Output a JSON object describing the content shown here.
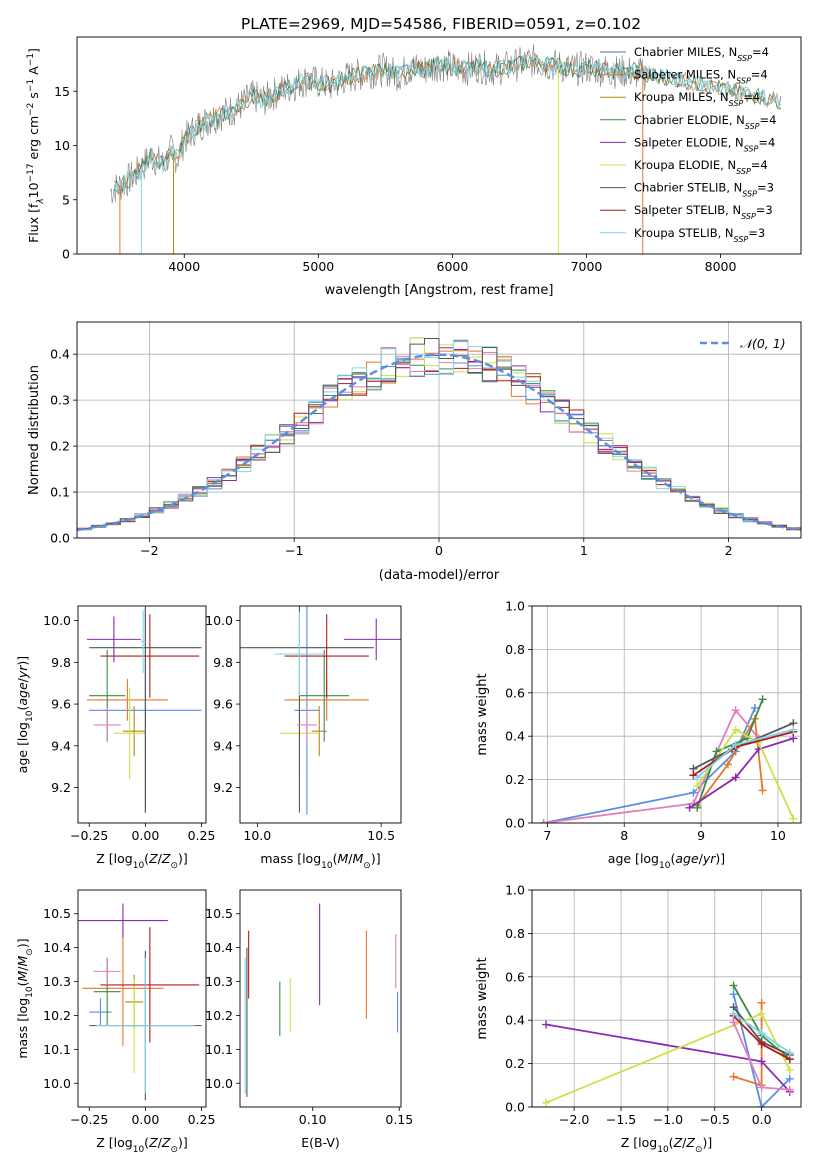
{
  "page_title": "PLATE=2969, MJD=54586, FIBERID=0591, z=0.102",
  "colors": {
    "chabrier_miles": "#4c6e9e",
    "salpeter_miles": "#e8762a",
    "kroupa_miles": "#b8860b",
    "chabrier_elodie": "#3d8a4a",
    "salpeter_elodie": "#8b29b0",
    "kroupa_elodie": "#cde04a",
    "chabrier_stelib": "#555555",
    "salpeter_stelib": "#b01b1b",
    "kroupa_stelib": "#7fd6e8",
    "blue": "#5b8ee0",
    "pink": "#e07fbf",
    "grid": "#b0b0b0"
  },
  "chart_data": [
    {
      "id": "spectrum",
      "type": "line",
      "title": "PLATE=2969, MJD=54586, FIBERID=0591, z=0.102",
      "xlabel": "wavelength [Angstrom, rest frame]",
      "ylabel": "Flux [f_λ 10^-17 erg cm^-2 s^-1 A^-1]",
      "ylabel_parts": {
        "a": "Flux [f",
        "b": "λ",
        "c": "10",
        "d": "−17",
        "e": " erg cm",
        "f": "−2",
        "g": " s",
        "h": "−1",
        "i": " A",
        "j": "−1",
        "k": "]"
      },
      "xlim": [
        3200,
        8600
      ],
      "ylim": [
        0,
        20
      ],
      "xticks": [
        4000,
        5000,
        6000,
        7000,
        8000
      ],
      "yticks": [
        0,
        5,
        10,
        15
      ],
      "grid": false,
      "legend_position": "top-right",
      "legend": [
        {
          "name": "Chabrier MILES, N",
          "sub": "SSP",
          "suffix": "=4",
          "color": "#4c6e9e"
        },
        {
          "name": "Salpeter MILES, N",
          "sub": "SSP",
          "suffix": "=4",
          "color": "#e8762a"
        },
        {
          "name": "Kroupa MILES, N",
          "sub": "SSP",
          "suffix": "=4",
          "color": "#b8860b"
        },
        {
          "name": "Chabrier ELODIE, N",
          "sub": "SSP",
          "suffix": "=4",
          "color": "#3d8a4a"
        },
        {
          "name": "Salpeter ELODIE, N",
          "sub": "SSP",
          "suffix": "=4",
          "color": "#8b29b0"
        },
        {
          "name": "Kroupa ELODIE, N",
          "sub": "SSP",
          "suffix": "=4",
          "color": "#cde04a"
        },
        {
          "name": "Chabrier STELIB, N",
          "sub": "SSP",
          "suffix": "=3",
          "color": "#555555"
        },
        {
          "name": "Salpeter STELIB, N",
          "sub": "SSP",
          "suffix": "=3",
          "color": "#b01b1b"
        },
        {
          "name": "Kroupa STELIB, N",
          "sub": "SSP",
          "suffix": "=3",
          "color": "#7fd6e8"
        }
      ],
      "series": [
        {
          "name": "data",
          "color": "#808080",
          "x": [
            3450,
            3500,
            3550,
            3600,
            3650,
            3700,
            3750,
            3800,
            3850,
            3900,
            3950,
            4000,
            4100,
            4200,
            4300,
            4400,
            4500,
            4600,
            4700,
            4800,
            4900,
            5000,
            5100,
            5200,
            5300,
            5400,
            5500,
            5600,
            5700,
            5800,
            5900,
            6000,
            6100,
            6200,
            6300,
            6400,
            6500,
            6600,
            6700,
            6800,
            6900,
            7000,
            7100,
            7200,
            7300,
            7400,
            7500,
            7600,
            7700,
            7800,
            7900,
            8000,
            8100,
            8200,
            8300,
            8400,
            8500,
            8600
          ],
          "y": [
            5.8,
            6.2,
            6.5,
            7.0,
            7.5,
            8.2,
            9.0,
            8.6,
            8.2,
            9.5,
            8.8,
            10.5,
            11.8,
            12.5,
            13.0,
            13.5,
            14.5,
            14.2,
            15.0,
            15.5,
            16.0,
            15.8,
            15.5,
            16.2,
            16.5,
            16.8,
            17.0,
            16.5,
            17.2,
            17.0,
            17.5,
            17.2,
            17.0,
            17.3,
            17.0,
            17.2,
            17.5,
            17.8,
            17.5,
            17.3,
            17.0,
            17.2,
            17.0,
            16.8,
            16.8,
            16.6,
            16.5,
            16.3,
            16.0,
            15.8,
            15.5,
            15.3,
            15.0,
            14.8,
            14.5,
            14.2,
            14.0,
            13.8
          ]
        }
      ]
    },
    {
      "id": "residuals",
      "type": "line",
      "xlabel": "(data-model)/error",
      "ylabel": "Normed distribution",
      "xlim": [
        -2.5,
        2.5
      ],
      "ylim": [
        0,
        0.47
      ],
      "xticks": [
        -2,
        -1,
        0,
        1,
        2
      ],
      "yticks": [
        0.0,
        0.1,
        0.2,
        0.3,
        0.4
      ],
      "grid": true,
      "legend_position": "top-right",
      "legend": [
        {
          "name": "𝒩(0, 1)",
          "color": "#5b8ee0",
          "dashed": true
        }
      ],
      "normal_curve": {
        "mu": 0,
        "sigma": 1
      }
    },
    {
      "id": "age_vs_Z",
      "type": "scatter",
      "xlabel": "Z [log10(Z/Z☉)]",
      "ylabel": "age  [log10(age/yr)]",
      "xlim": [
        -0.3,
        0.27
      ],
      "ylim": [
        9.03,
        10.07
      ],
      "xticks": [
        -0.25,
        0.0,
        0.25
      ],
      "yticks": [
        9.2,
        9.4,
        9.6,
        9.8,
        10.0
      ],
      "grid": false,
      "points": [
        {
          "x": 0.0,
          "y": 9.57,
          "xerr": 0.25,
          "yerr": 0.49,
          "color": "#5b8ee0"
        },
        {
          "x": -0.08,
          "y": 9.62,
          "xerr": 0.18,
          "yerr": 0.1,
          "color": "#e8762a"
        },
        {
          "x": -0.05,
          "y": 9.47,
          "xerr": 0.05,
          "yerr": 0.12,
          "color": "#b8860b"
        },
        {
          "x": -0.17,
          "y": 9.64,
          "xerr": 0.08,
          "yerr": 0.22,
          "color": "#3d8a4a"
        },
        {
          "x": -0.14,
          "y": 9.91,
          "xerr": 0.12,
          "yerr": 0.11,
          "color": "#8b29b0"
        },
        {
          "x": -0.07,
          "y": 9.46,
          "xerr": 0.07,
          "yerr": 0.22,
          "color": "#cde04a"
        },
        {
          "x": 0.0,
          "y": 9.87,
          "xerr": 0.25,
          "yerr": 0.79,
          "color": "#555555"
        },
        {
          "x": 0.02,
          "y": 9.83,
          "xerr": 0.22,
          "yerr": 0.2,
          "color": "#b01b1b"
        },
        {
          "x": -0.17,
          "y": 9.5,
          "xerr": 0.06,
          "yerr": 0.08,
          "color": "#e07fbf"
        },
        {
          "x": -0.01,
          "y": 9.9,
          "xerr": 0.01,
          "yerr": 0.15,
          "color": "#7fd6e8"
        }
      ]
    },
    {
      "id": "age_vs_mass",
      "type": "scatter",
      "xlabel": "mass [log10(M/M☉)]",
      "ylabel": "",
      "xlim": [
        9.93,
        10.58
      ],
      "ylim": [
        9.03,
        10.07
      ],
      "xticks": [
        10.0,
        10.5
      ],
      "yticks": [
        9.2,
        9.4,
        9.6,
        9.8,
        10.0
      ],
      "grid": false,
      "points": [
        {
          "x": 10.2,
          "y": 9.57,
          "xerr": 0.05,
          "yerr": 0.5,
          "color": "#5b8ee0"
        },
        {
          "x": 10.28,
          "y": 9.62,
          "xerr": 0.17,
          "yerr": 0.1,
          "color": "#e8762a"
        },
        {
          "x": 10.25,
          "y": 9.47,
          "xerr": 0.03,
          "yerr": 0.12,
          "color": "#b8860b"
        },
        {
          "x": 10.27,
          "y": 9.64,
          "xerr": 0.1,
          "yerr": 0.22,
          "color": "#3d8a4a"
        },
        {
          "x": 10.48,
          "y": 9.91,
          "xerr": 0.13,
          "yerr": 0.1,
          "color": "#8b29b0"
        },
        {
          "x": 10.17,
          "y": 9.46,
          "xerr": 0.08,
          "yerr": 0.22,
          "color": "#cde04a"
        },
        {
          "x": 10.17,
          "y": 9.87,
          "xerr": 0.3,
          "yerr": 0.79,
          "color": "#555555"
        },
        {
          "x": 10.28,
          "y": 9.83,
          "xerr": 0.17,
          "yerr": 0.2,
          "color": "#b01b1b"
        },
        {
          "x": 10.2,
          "y": 9.5,
          "xerr": 0.04,
          "yerr": 0.08,
          "color": "#e07fbf"
        },
        {
          "x": 10.17,
          "y": 9.84,
          "xerr": 0.1,
          "yerr": 0.2,
          "color": "#7fd6e8"
        }
      ]
    },
    {
      "id": "weight_vs_age",
      "type": "line",
      "xlabel": "age  [log10(age/yr)]",
      "ylabel": "mass weight",
      "xlim": [
        6.8,
        10.3
      ],
      "ylim": [
        0,
        1
      ],
      "xticks": [
        7,
        8,
        9,
        10
      ],
      "yticks": [
        0.0,
        0.2,
        0.4,
        0.6,
        0.8,
        1.0
      ],
      "grid": true,
      "series": [
        {
          "color": "#5b8ee0",
          "x": [
            6.95,
            8.9,
            9.45,
            9.7
          ],
          "y": [
            0.0,
            0.14,
            0.33,
            0.53
          ]
        },
        {
          "color": "#e07fbf",
          "x": [
            6.95,
            8.9,
            9.45,
            9.75
          ],
          "y": [
            0.0,
            0.09,
            0.52,
            0.39
          ]
        },
        {
          "color": "#e8762a",
          "x": [
            8.95,
            9.35,
            9.7,
            9.8
          ],
          "y": [
            0.08,
            0.27,
            0.48,
            0.15
          ]
        },
        {
          "color": "#3d8a4a",
          "x": [
            8.95,
            9.2,
            9.6,
            9.8
          ],
          "y": [
            0.07,
            0.33,
            0.39,
            0.57
          ]
        },
        {
          "color": "#8b29b0",
          "x": [
            8.85,
            9.45,
            9.75,
            10.2
          ],
          "y": [
            0.07,
            0.21,
            0.34,
            0.39
          ]
        },
        {
          "color": "#cde04a",
          "x": [
            8.95,
            9.45,
            9.75,
            10.2
          ],
          "y": [
            0.17,
            0.43,
            0.37,
            0.02
          ]
        },
        {
          "color": "#555555",
          "x": [
            8.9,
            9.4,
            10.2
          ],
          "y": [
            0.25,
            0.34,
            0.46
          ]
        },
        {
          "color": "#b01b1b",
          "x": [
            8.9,
            9.45,
            10.2
          ],
          "y": [
            0.22,
            0.35,
            0.42
          ]
        },
        {
          "color": "#7fd6e8",
          "x": [
            8.95,
            9.45,
            10.2
          ],
          "y": [
            0.21,
            0.36,
            0.43
          ]
        }
      ]
    },
    {
      "id": "mass_vs_Z",
      "type": "scatter",
      "xlabel": "Z [log10(Z/Z☉)]",
      "ylabel": "mass [log10(M/M☉)]",
      "xlim": [
        -0.3,
        0.27
      ],
      "ylim": [
        9.93,
        10.57
      ],
      "xticks": [
        -0.25,
        0.0,
        0.25
      ],
      "yticks": [
        10.0,
        10.1,
        10.2,
        10.3,
        10.4,
        10.5
      ],
      "grid": false,
      "points": [
        {
          "x": -0.2,
          "y": 10.21,
          "xerr": 0.05,
          "yerr": 0.04,
          "color": "#5b8ee0"
        },
        {
          "x": -0.1,
          "y": 10.28,
          "xerr": 0.18,
          "yerr": 0.17,
          "color": "#e8762a"
        },
        {
          "x": -0.05,
          "y": 10.24,
          "xerr": 0.04,
          "yerr": 0.08,
          "color": "#b8860b"
        },
        {
          "x": -0.17,
          "y": 10.27,
          "xerr": 0.06,
          "yerr": 0.1,
          "color": "#3d8a4a"
        },
        {
          "x": -0.1,
          "y": 10.48,
          "xerr": 0.2,
          "yerr": 0.05,
          "color": "#8b29b0"
        },
        {
          "x": -0.05,
          "y": 10.17,
          "xerr": 0.05,
          "yerr": 0.14,
          "color": "#cde04a"
        },
        {
          "x": 0.0,
          "y": 10.17,
          "xerr": 0.25,
          "yerr": 0.22,
          "color": "#555555"
        },
        {
          "x": 0.02,
          "y": 10.29,
          "xerr": 0.22,
          "yerr": 0.17,
          "color": "#b01b1b"
        },
        {
          "x": -0.17,
          "y": 10.33,
          "xerr": 0.06,
          "yerr": 0.04,
          "color": "#e07fbf"
        },
        {
          "x": 0.0,
          "y": 10.17,
          "xerr": 0.22,
          "yerr": 0.2,
          "color": "#7fd6e8"
        }
      ]
    },
    {
      "id": "mass_vs_ebv",
      "type": "scatter",
      "xlabel": "E(B-V)",
      "ylabel": "",
      "xlim": [
        0.058,
        0.151
      ],
      "ylim": [
        9.93,
        10.57
      ],
      "xticks": [
        0.05,
        0.1,
        0.15
      ],
      "yticks": [
        10.0,
        10.1,
        10.2,
        10.3,
        10.4,
        10.5
      ],
      "grid": false,
      "points": [
        {
          "x": 0.149,
          "y": 10.21,
          "xerr": 0,
          "yerr": 0.06,
          "color": "#5b8ee0"
        },
        {
          "x": 0.131,
          "y": 10.32,
          "xerr": 0,
          "yerr": 0.13,
          "color": "#e8762a"
        },
        {
          "x": 0.062,
          "y": 10.18,
          "xerr": 0,
          "yerr": 0.22,
          "color": "#555555"
        },
        {
          "x": 0.081,
          "y": 10.22,
          "xerr": 0,
          "yerr": 0.08,
          "color": "#3d8a4a"
        },
        {
          "x": 0.104,
          "y": 10.38,
          "xerr": 0,
          "yerr": 0.15,
          "color": "#8b29b0"
        },
        {
          "x": 0.087,
          "y": 10.23,
          "xerr": 0,
          "yerr": 0.08,
          "color": "#cde04a"
        },
        {
          "x": 0.063,
          "y": 10.35,
          "xerr": 0,
          "yerr": 0.1,
          "color": "#b01b1b"
        },
        {
          "x": 0.148,
          "y": 10.36,
          "xerr": 0,
          "yerr": 0.08,
          "color": "#e07fbf"
        },
        {
          "x": 0.061,
          "y": 10.17,
          "xerr": 0,
          "yerr": 0.2,
          "color": "#7fd6e8"
        }
      ]
    },
    {
      "id": "weight_vs_Z",
      "type": "line",
      "xlabel": "Z [log10(Z/Z☉)]",
      "ylabel": "mass weight",
      "xlim": [
        -2.45,
        0.42
      ],
      "ylim": [
        0,
        1
      ],
      "xticks": [
        -2.0,
        -1.5,
        -1.0,
        -0.5,
        0.0
      ],
      "yticks": [
        0.0,
        0.2,
        0.4,
        0.6,
        0.8,
        1.0
      ],
      "grid": true,
      "series": [
        {
          "color": "#5b8ee0",
          "x": [
            -0.3,
            0.0,
            0.3
          ],
          "y": [
            0.52,
            0.0,
            0.13
          ]
        },
        {
          "color": "#e8762a",
          "x": [
            -0.3,
            0.0,
            0.0
          ],
          "y": [
            0.14,
            0.1,
            0.48
          ]
        },
        {
          "color": "#3d8a4a",
          "x": [
            -0.3,
            0.0,
            0.3
          ],
          "y": [
            0.56,
            0.33,
            0.22
          ]
        },
        {
          "color": "#8b29b0",
          "x": [
            -2.3,
            0.0,
            0.3
          ],
          "y": [
            0.38,
            0.21,
            0.07
          ]
        },
        {
          "color": "#cde04a",
          "x": [
            -2.3,
            0.0,
            0.3
          ],
          "y": [
            0.02,
            0.43,
            0.17
          ]
        },
        {
          "color": "#555555",
          "x": [
            -0.3,
            0.0,
            0.3
          ],
          "y": [
            0.46,
            0.3,
            0.24
          ]
        },
        {
          "color": "#b01b1b",
          "x": [
            -0.3,
            0.0,
            0.3
          ],
          "y": [
            0.42,
            0.29,
            0.22
          ]
        },
        {
          "color": "#e07fbf",
          "x": [
            -0.3,
            0.0,
            0.3
          ],
          "y": [
            0.39,
            0.09,
            0.08
          ]
        },
        {
          "color": "#7fd6e8",
          "x": [
            -0.3,
            0.0,
            0.3
          ],
          "y": [
            0.43,
            0.34,
            0.25
          ]
        }
      ]
    }
  ]
}
